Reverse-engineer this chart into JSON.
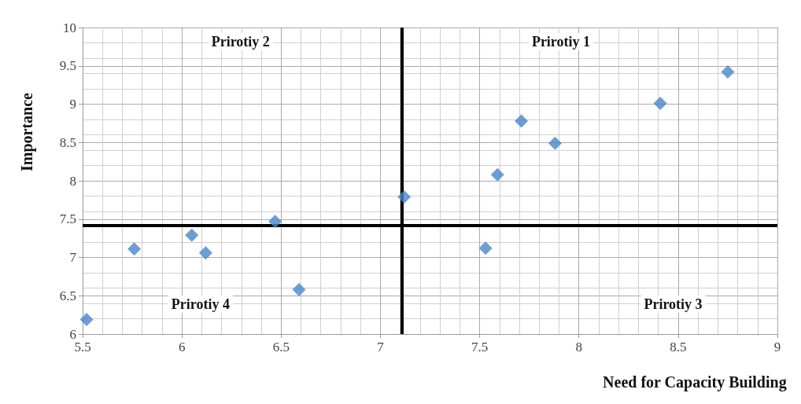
{
  "chart_data": {
    "type": "scatter",
    "xlabel": "Need for Capacity Building",
    "ylabel": "Importance",
    "annotations": [
      "Prirotiy 1",
      "Prirotiy 2",
      "Prirotiy 3",
      "Prirotiy 4"
    ],
    "x": [
      5.52,
      5.76,
      6.05,
      6.12,
      6.47,
      6.59,
      7.12,
      7.53,
      7.59,
      7.71,
      7.88,
      8.41,
      8.75
    ],
    "values": [
      6.19,
      7.11,
      7.29,
      7.06,
      7.47,
      6.58,
      7.79,
      7.12,
      8.08,
      8.78,
      8.49,
      9.01,
      9.42
    ],
    "color": "#4a86c5",
    "marker": "diamond",
    "xlim": [
      5.5,
      9
    ],
    "xticks": [
      5.5,
      6,
      6.5,
      7,
      7.5,
      8,
      8.5,
      9
    ],
    "ylim": [
      6,
      10
    ],
    "yticks": [
      6,
      6.5,
      7,
      7.5,
      8,
      8.5,
      9,
      9.5,
      10
    ],
    "ref_lines": [
      {
        "axis": "x",
        "value": 7.11,
        "color": "#000000"
      },
      {
        "axis": "y",
        "value": 7.42,
        "color": "#000000"
      }
    ],
    "grid": true
  }
}
